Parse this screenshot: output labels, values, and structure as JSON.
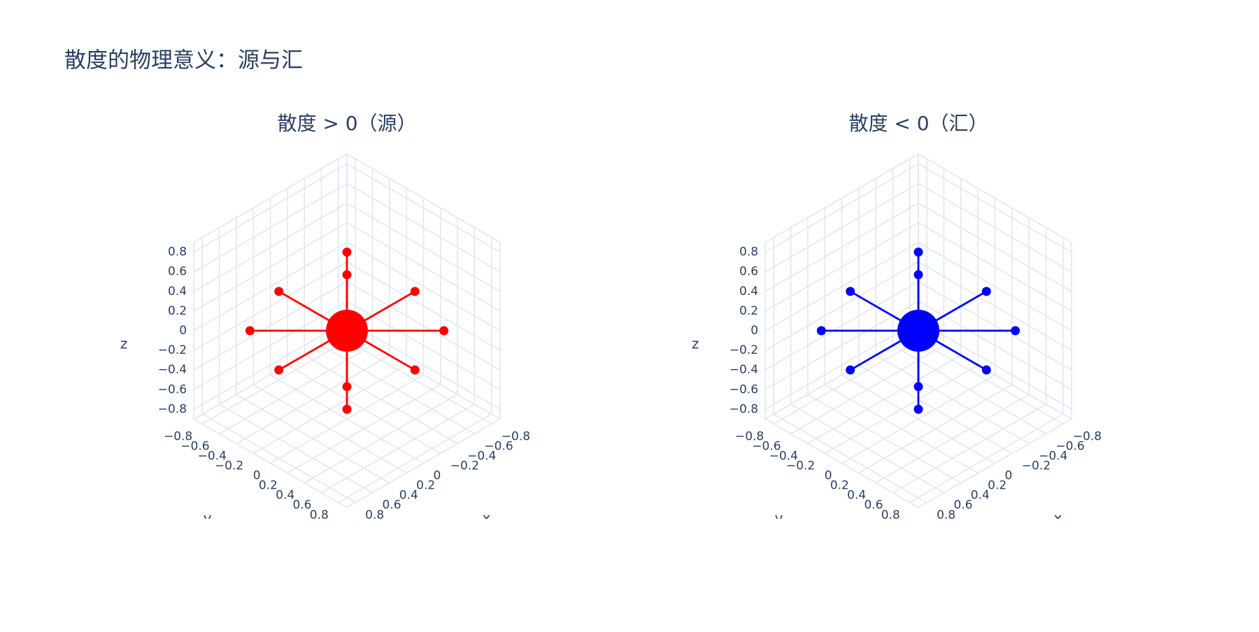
{
  "title": "散度的物理意义：源与汇",
  "chart_data": [
    {
      "type": "scatter3d",
      "title": "散度 > 0（源）",
      "color": "#ff0000",
      "x": [
        0,
        0.8,
        0.57,
        0,
        -0.57,
        -0.8,
        -0.57,
        0,
        0.57,
        0,
        0
      ],
      "y": [
        0,
        0,
        0.57,
        0.8,
        0.57,
        0,
        -0.57,
        -0.8,
        -0.57,
        0,
        0
      ],
      "z": [
        0,
        0,
        0,
        0,
        0,
        0,
        0,
        0,
        0,
        0.8,
        -0.8
      ],
      "xlabel": "x",
      "ylabel": "y",
      "zlabel": "z",
      "xlim": [
        -0.9,
        0.9
      ],
      "ylim": [
        -0.9,
        0.9
      ],
      "zlim": [
        -0.9,
        0.9
      ],
      "xticks": [
        {
          "value": -0.8,
          "label": "−0.8"
        },
        {
          "value": -0.6,
          "label": "−0.6"
        },
        {
          "value": -0.4,
          "label": "−0.4"
        },
        {
          "value": -0.2,
          "label": "−0.2"
        },
        0,
        0.2,
        0.4,
        0.6,
        0.8
      ],
      "yticks": [
        {
          "value": -0.8,
          "label": "−0.8"
        },
        {
          "value": -0.6,
          "label": "−0.6"
        },
        {
          "value": -0.4,
          "label": "−0.4"
        },
        {
          "value": -0.2,
          "label": "−0.2"
        },
        0,
        0.2,
        0.4,
        0.6,
        0.8
      ],
      "zticks": [
        {
          "value": -0.8,
          "label": "−0.8"
        },
        {
          "value": -0.6,
          "label": "−0.6"
        },
        {
          "value": -0.4,
          "label": "−0.4"
        },
        {
          "value": -0.2,
          "label": "−0.2"
        },
        0,
        0.2,
        0.4,
        0.6,
        0.8
      ],
      "grid": true
    },
    {
      "type": "scatter3d",
      "title": "散度 < 0（汇）",
      "color": "#0000ff",
      "x": [
        0,
        0.8,
        0.57,
        0,
        -0.57,
        -0.8,
        -0.57,
        0,
        0.57,
        0,
        0
      ],
      "y": [
        0,
        0,
        0.57,
        0.8,
        0.57,
        0,
        -0.57,
        -0.8,
        -0.57,
        0,
        0
      ],
      "z": [
        0,
        0,
        0,
        0,
        0,
        0,
        0,
        0,
        0,
        0.8,
        -0.8
      ],
      "xlabel": "x",
      "ylabel": "y",
      "zlabel": "z",
      "xlim": [
        -0.9,
        0.9
      ],
      "ylim": [
        -0.9,
        0.9
      ],
      "zlim": [
        -0.9,
        0.9
      ],
      "xticks": [
        {
          "value": -0.8,
          "label": "−0.8"
        },
        {
          "value": -0.6,
          "label": "−0.6"
        },
        {
          "value": -0.4,
          "label": "−0.4"
        },
        {
          "value": -0.2,
          "label": "−0.2"
        },
        0,
        0.2,
        0.4,
        0.6,
        0.8
      ],
      "yticks": [
        {
          "value": -0.8,
          "label": "−0.8"
        },
        {
          "value": -0.6,
          "label": "−0.6"
        },
        {
          "value": -0.4,
          "label": "−0.4"
        },
        {
          "value": -0.2,
          "label": "−0.2"
        },
        0,
        0.2,
        0.4,
        0.6,
        0.8
      ],
      "zticks": [
        {
          "value": -0.8,
          "label": "−0.8"
        },
        {
          "value": -0.6,
          "label": "−0.6"
        },
        {
          "value": -0.4,
          "label": "−0.4"
        },
        {
          "value": -0.2,
          "label": "−0.2"
        },
        0,
        0.2,
        0.4,
        0.6,
        0.8
      ],
      "grid": true
    }
  ]
}
